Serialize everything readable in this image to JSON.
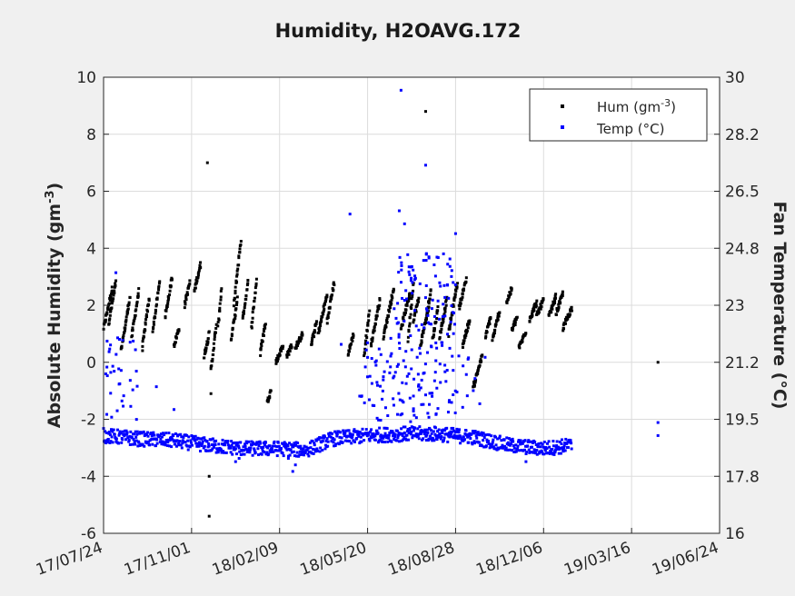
{
  "chart_data": {
    "type": "scatter",
    "title": "Humidity, H2OAVG.172",
    "ylabel_left": {
      "main": "Absolute Humidity (gm",
      "sup": "-3",
      "tail": ")"
    },
    "ylabel_right": "Fan Temperature (°C)",
    "xlabel": "",
    "x_tick_labels": [
      "17/07/24",
      "17/11/01",
      "18/02/09",
      "18/05/20",
      "18/08/28",
      "18/12/06",
      "19/03/16",
      "19/06/24"
    ],
    "y_left_ticks": [
      "-6",
      "-4",
      "-2",
      "0",
      "2",
      "4",
      "6",
      "8",
      "10"
    ],
    "y_right_ticks": [
      "16",
      "17.8",
      "19.5",
      "21.2",
      "23",
      "24.8",
      "26.5",
      "28.2",
      "30"
    ],
    "ylim_left": [
      -6,
      10
    ],
    "ylim_right": [
      16,
      30
    ],
    "xlim_days": [
      0,
      700
    ],
    "grid": true,
    "legend_position": "top-right",
    "legend": [
      {
        "main": "Hum (gm",
        "sup": "-3",
        "tail": ")",
        "color": "#000000"
      },
      {
        "main": "Temp (°C)",
        "sup": "",
        "tail": "",
        "color": "#0000ff"
      }
    ],
    "series": [
      {
        "name": "Hum",
        "axis": "left",
        "color": "#000000",
        "ramps": [
          [
            0,
            10,
            1.2,
            2.6
          ],
          [
            6,
            14,
            1.4,
            2.8
          ],
          [
            20,
            30,
            0.4,
            2.3
          ],
          [
            32,
            40,
            0.9,
            2.5
          ],
          [
            44,
            52,
            0.5,
            2.3
          ],
          [
            56,
            64,
            1.1,
            2.9
          ],
          [
            70,
            78,
            1.6,
            3.0
          ],
          [
            80,
            86,
            0.6,
            1.2
          ],
          [
            92,
            98,
            2.0,
            2.8
          ],
          [
            103,
            110,
            2.5,
            3.4
          ],
          [
            114,
            120,
            0.2,
            1.0
          ],
          [
            122,
            128,
            -0.3,
            1.3
          ],
          [
            130,
            134,
            1.2,
            2.6
          ],
          [
            145,
            152,
            0.8,
            2.2
          ],
          [
            148,
            156,
            2.0,
            4.3
          ],
          [
            158,
            164,
            1.5,
            2.8
          ],
          [
            168,
            174,
            1.2,
            2.9
          ],
          [
            178,
            184,
            0.3,
            1.4
          ],
          [
            186,
            190,
            -1.4,
            -1.0
          ],
          [
            196,
            204,
            0.0,
            0.6
          ],
          [
            208,
            214,
            0.2,
            0.6
          ],
          [
            218,
            226,
            0.5,
            1.0
          ],
          [
            236,
            242,
            0.6,
            1.4
          ],
          [
            244,
            254,
            1.0,
            2.4
          ],
          [
            254,
            262,
            1.4,
            2.8
          ],
          [
            278,
            284,
            0.3,
            1.0
          ],
          [
            296,
            302,
            0.2,
            1.8
          ],
          [
            304,
            314,
            0.6,
            2.2
          ],
          [
            318,
            330,
            0.9,
            2.6
          ],
          [
            338,
            348,
            1.2,
            2.4
          ],
          [
            346,
            352,
            0.8,
            2.8
          ],
          [
            352,
            358,
            1.5,
            2.2
          ],
          [
            360,
            370,
            0.6,
            2.0
          ],
          [
            366,
            372,
            1.4,
            2.6
          ],
          [
            374,
            380,
            0.8,
            1.9
          ],
          [
            382,
            390,
            0.9,
            2.2
          ],
          [
            392,
            402,
            1.0,
            2.8
          ],
          [
            404,
            412,
            1.9,
            2.9
          ],
          [
            408,
            416,
            0.6,
            1.5
          ],
          [
            420,
            430,
            -0.9,
            0.2
          ],
          [
            434,
            440,
            0.9,
            1.6
          ],
          [
            442,
            450,
            0.8,
            1.8
          ],
          [
            458,
            464,
            2.1,
            2.6
          ],
          [
            464,
            470,
            1.1,
            1.6
          ],
          [
            472,
            480,
            0.5,
            1.1
          ],
          [
            484,
            492,
            1.5,
            2.1
          ],
          [
            492,
            500,
            1.6,
            2.2
          ],
          [
            506,
            514,
            1.6,
            2.3
          ],
          [
            514,
            522,
            1.7,
            2.4
          ],
          [
            522,
            532,
            1.2,
            1.9
          ]
        ],
        "outliers": [
          {
            "x": 118,
            "y": 7.0
          },
          {
            "x": 120,
            "y": -4.0
          },
          {
            "x": 120,
            "y": -5.4
          },
          {
            "x": 366,
            "y": 8.8
          },
          {
            "x": 630,
            "y": 0.0
          },
          {
            "x": 122,
            "y": -1.1
          },
          {
            "x": 110,
            "y": 3.5
          }
        ]
      },
      {
        "name": "Temp",
        "axis": "right",
        "color": "#0000ff",
        "baseline": [
          [
            0,
            19.0
          ],
          [
            40,
            18.9
          ],
          [
            80,
            18.85
          ],
          [
            120,
            18.7
          ],
          [
            160,
            18.6
          ],
          [
            200,
            18.6
          ],
          [
            230,
            18.55
          ],
          [
            260,
            18.9
          ],
          [
            300,
            19.0
          ],
          [
            340,
            19.05
          ],
          [
            380,
            19.05
          ],
          [
            420,
            18.95
          ],
          [
            460,
            18.7
          ],
          [
            500,
            18.6
          ],
          [
            532,
            18.7
          ]
        ],
        "scatter": [
          {
            "x": 280,
            "y": 25.8
          },
          {
            "x": 338,
            "y": 29.6
          },
          {
            "x": 366,
            "y": 27.3
          },
          {
            "x": 400,
            "y": 25.2
          },
          {
            "x": 336,
            "y": 25.9
          },
          {
            "x": 342,
            "y": 25.5
          },
          {
            "x": 14,
            "y": 24.0
          },
          {
            "x": 630,
            "y": 19.4
          },
          {
            "x": 630,
            "y": 19.0
          },
          {
            "x": 4,
            "y": 21.9
          },
          {
            "x": 8,
            "y": 20.3
          },
          {
            "x": 20,
            "y": 21.0
          },
          {
            "x": 16,
            "y": 22.0
          },
          {
            "x": 60,
            "y": 20.5
          },
          {
            "x": 80,
            "y": 19.8
          },
          {
            "x": 270,
            "y": 21.8
          },
          {
            "x": 300,
            "y": 21.4
          },
          {
            "x": 305,
            "y": 20.6
          }
        ]
      }
    ]
  }
}
